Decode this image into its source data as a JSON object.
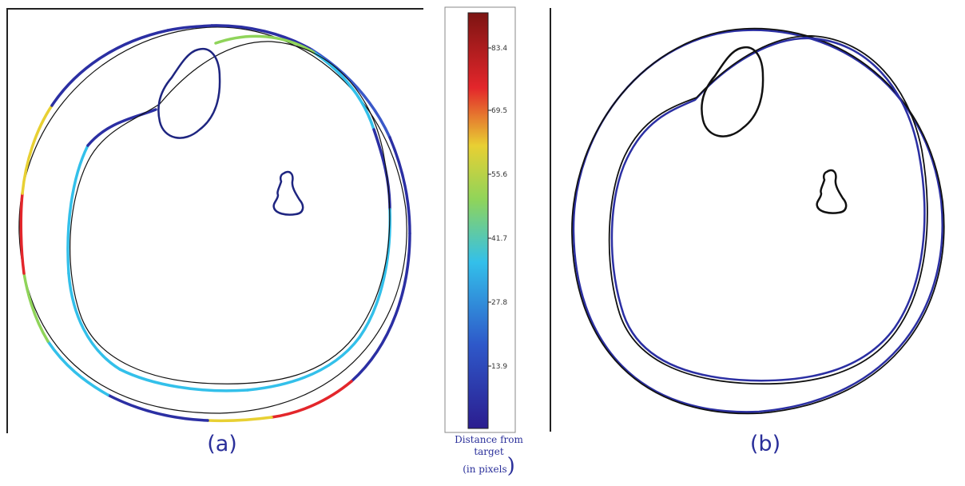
{
  "panels": {
    "a": {
      "caption": "(a)"
    },
    "b": {
      "caption": "(b)"
    }
  },
  "colorbar": {
    "ticks": [
      "83.4",
      "69.5",
      "55.6",
      "41.7",
      "27.8",
      "13.9"
    ],
    "label_line1": "Distance from",
    "label_line2": "target",
    "label_line3": "(in pixels",
    "label_paren": ")",
    "colors": {
      "low": "#2b1d8f",
      "mid": "#33c0ea",
      "mid2": "#8fd45a",
      "high": "#e8d033",
      "higher": "#e3262b",
      "max": "#7c1412"
    }
  },
  "colors": {
    "contour_black": "#111111",
    "contour_blue": "#2b2fa3",
    "caption_text": "#2a2f9a"
  }
}
